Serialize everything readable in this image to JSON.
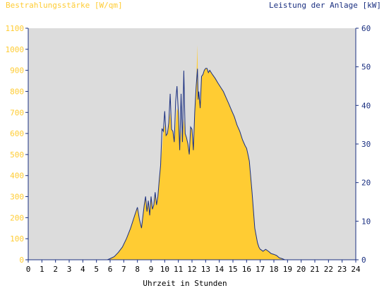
{
  "chart_data": {
    "type": "area",
    "left_axis_title": "Bestrahlungsstärke [W/qm]",
    "right_axis_title": "Leistung der Anlage [kW]",
    "xlabel": "Uhrzeit in Stunden",
    "xlim": [
      0,
      24
    ],
    "x_ticks": [
      "0",
      "1",
      "2",
      "3",
      "4",
      "5",
      "6",
      "7",
      "8",
      "9",
      "10",
      "11",
      "12",
      "13",
      "14",
      "15",
      "16",
      "17",
      "18",
      "19",
      "20",
      "21",
      "22",
      "23",
      "24"
    ],
    "y_left_lim": [
      0,
      1100
    ],
    "y_left_ticks": [
      "0",
      "100",
      "200",
      "300",
      "400",
      "500",
      "600",
      "700",
      "800",
      "900",
      "1000",
      "1100"
    ],
    "y_right_lim": [
      0,
      60
    ],
    "y_right_ticks": [
      "0",
      "10",
      "20",
      "30",
      "40",
      "50",
      "60"
    ],
    "grid": false,
    "colors": {
      "plot_background": "#dcdcdc",
      "irradiance_fill": "#ffcc33",
      "power_line": "#1a2f80",
      "left_axis_text": "#ffcc33",
      "right_axis_text": "#1a2f80",
      "axis_line": "#1a2f80"
    },
    "series": [
      {
        "axis": "left",
        "render": "area",
        "x": [
          0,
          5.8,
          6.0,
          6.3,
          6.6,
          6.9,
          7.2,
          7.5,
          7.8,
          8.0,
          8.15,
          8.3,
          8.5,
          8.6,
          8.7,
          8.8,
          8.9,
          9.0,
          9.1,
          9.2,
          9.3,
          9.4,
          9.5,
          9.6,
          9.7,
          9.8,
          9.9,
          10.0,
          10.1,
          10.2,
          10.3,
          10.4,
          10.5,
          10.6,
          10.7,
          10.8,
          10.9,
          11.0,
          11.1,
          11.2,
          11.3,
          11.4,
          11.5,
          11.6,
          11.7,
          11.8,
          11.9,
          12.0,
          12.1,
          12.2,
          12.3,
          12.4,
          12.45,
          12.5,
          12.6,
          12.7,
          12.8,
          12.9,
          13.0,
          13.1,
          13.2,
          13.3,
          13.5,
          13.7,
          13.9,
          14.1,
          14.3,
          14.5,
          14.7,
          14.9,
          15.1,
          15.3,
          15.5,
          15.7,
          15.9,
          16.0,
          16.1,
          16.2,
          16.4,
          16.6,
          16.8,
          16.9,
          17.0,
          17.1,
          17.2,
          17.4,
          17.6,
          17.8,
          18.0,
          18.2,
          18.4,
          18.6,
          18.8,
          19.0,
          19.2,
          24
        ],
        "values": [
          0,
          0,
          5,
          15,
          35,
          60,
          100,
          150,
          210,
          250,
          190,
          150,
          260,
          300,
          230,
          280,
          210,
          300,
          240,
          260,
          320,
          260,
          300,
          380,
          450,
          520,
          610,
          640,
          590,
          600,
          650,
          700,
          620,
          610,
          560,
          640,
          720,
          700,
          520,
          620,
          560,
          670,
          600,
          580,
          550,
          500,
          630,
          620,
          520,
          700,
          820,
          1020,
          760,
          800,
          720,
          860,
          880,
          900,
          910,
          910,
          890,
          900,
          880,
          860,
          840,
          820,
          800,
          770,
          740,
          710,
          680,
          640,
          610,
          570,
          540,
          530,
          500,
          470,
          320,
          150,
          80,
          60,
          50,
          45,
          40,
          50,
          40,
          30,
          25,
          20,
          10,
          5,
          0,
          0,
          0,
          0
        ]
      },
      {
        "axis": "right",
        "render": "line",
        "x": [
          0,
          5.8,
          6.0,
          6.3,
          6.6,
          6.9,
          7.2,
          7.5,
          7.8,
          8.0,
          8.15,
          8.3,
          8.5,
          8.6,
          8.7,
          8.8,
          8.9,
          9.0,
          9.1,
          9.2,
          9.3,
          9.4,
          9.5,
          9.6,
          9.7,
          9.8,
          9.9,
          10.0,
          10.1,
          10.2,
          10.3,
          10.4,
          10.5,
          10.6,
          10.7,
          10.8,
          10.9,
          11.0,
          11.1,
          11.2,
          11.3,
          11.4,
          11.5,
          11.6,
          11.7,
          11.8,
          11.9,
          12.0,
          12.1,
          12.2,
          12.3,
          12.4,
          12.45,
          12.5,
          12.6,
          12.7,
          12.8,
          12.9,
          13.0,
          13.1,
          13.2,
          13.3,
          13.5,
          13.7,
          13.9,
          14.1,
          14.3,
          14.5,
          14.7,
          14.9,
          15.1,
          15.3,
          15.5,
          15.7,
          15.9,
          16.0,
          16.1,
          16.2,
          16.4,
          16.6,
          16.8,
          16.9,
          17.0,
          17.1,
          17.2,
          17.4,
          17.6,
          17.8,
          18.0,
          18.2,
          18.4,
          18.6,
          18.8,
          19.0,
          19.2,
          24
        ],
        "values": [
          0,
          0,
          0.3,
          0.8,
          1.9,
          3.3,
          5.5,
          8.2,
          11.5,
          13.6,
          10.4,
          8.2,
          14.2,
          16.4,
          12.5,
          15.3,
          11.5,
          16.4,
          13.1,
          14.2,
          17.5,
          14.2,
          16.4,
          20.7,
          24.5,
          34,
          33.3,
          38.5,
          32.2,
          32.7,
          35.5,
          43,
          33.8,
          33.3,
          30.5,
          41,
          45,
          38.2,
          28.4,
          43,
          30.5,
          49,
          32.7,
          31.6,
          30,
          27.3,
          34.4,
          33.8,
          28.4,
          38.2,
          44.7,
          49.5,
          41.5,
          43.6,
          39.3,
          47.5,
          48,
          49.1,
          49.6,
          49.6,
          48.5,
          49.1,
          48,
          47,
          45.8,
          44.7,
          43.6,
          42,
          40.4,
          38.7,
          37.1,
          34.9,
          33.3,
          31.1,
          29.5,
          28.9,
          27.3,
          25.6,
          17.5,
          8.2,
          4.4,
          3.3,
          2.7,
          2.5,
          2.2,
          2.7,
          2.2,
          1.6,
          1.4,
          1.1,
          0.5,
          0.3,
          0,
          0,
          0,
          0
        ]
      }
    ]
  }
}
